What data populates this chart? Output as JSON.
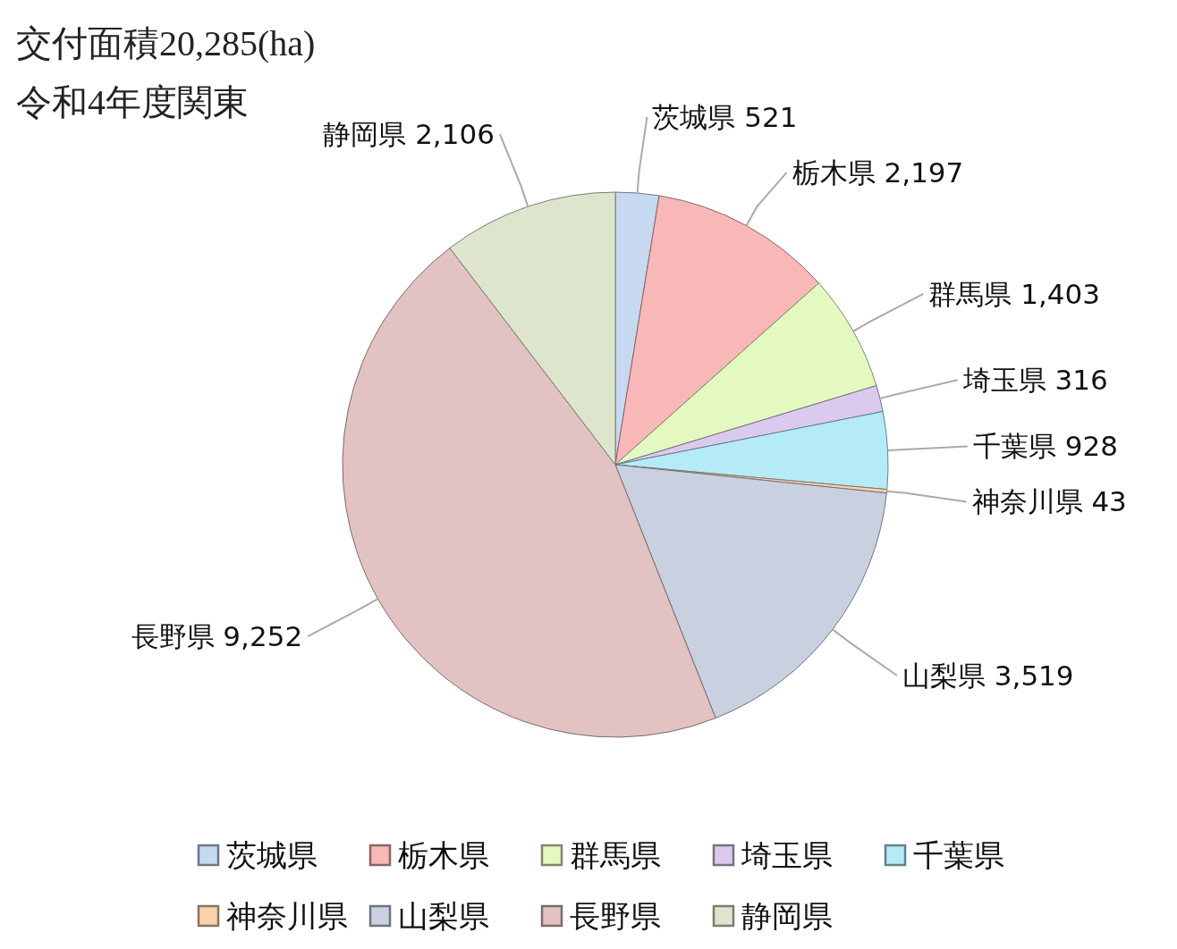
{
  "chart_data": {
    "type": "pie",
    "title": "交付面積20,285(ha)",
    "subtitle": "令和4年度関東",
    "categories": [
      "茨城県",
      "栃木県",
      "群馬県",
      "埼玉県",
      "千葉県",
      "神奈川県",
      "山梨県",
      "長野県",
      "静岡県"
    ],
    "values": [
      521,
      2197,
      1403,
      316,
      928,
      43,
      3519,
      9252,
      2106
    ],
    "value_labels": [
      "521",
      "2,197",
      "1,403",
      "316",
      "928",
      "43",
      "3,519",
      "9,252",
      "2,106"
    ],
    "colors": [
      "#c6d9f1",
      "#f9b8b8",
      "#e4f9c0",
      "#dacbee",
      "#b5ebf8",
      "#fcd2ad",
      "#c9d1e1",
      "#e2c2c2",
      "#dde5cc"
    ],
    "legend": "bottom"
  }
}
